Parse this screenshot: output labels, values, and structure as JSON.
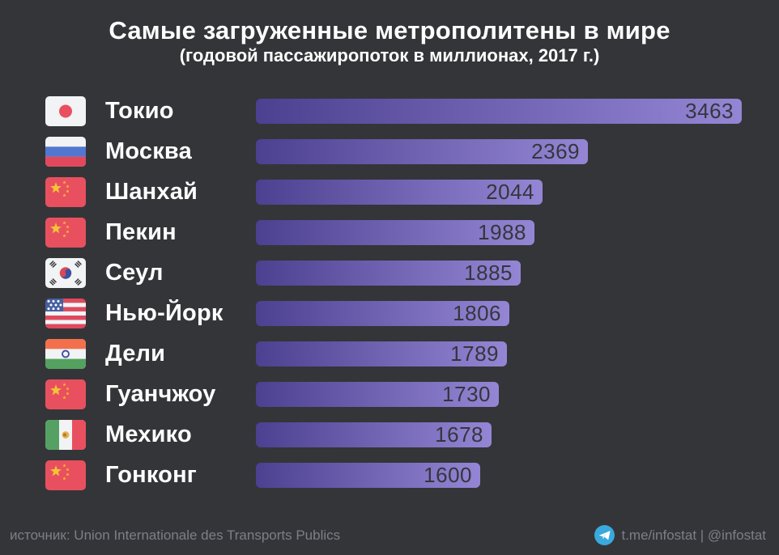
{
  "title": "Самые загруженные метрополитены в мире",
  "subtitle": "(годовой пассажиропоток в миллионах, 2017 г.)",
  "chart_data": {
    "type": "bar",
    "orientation": "horizontal",
    "title": "Самые загруженные метрополитены в мире",
    "subtitle": "(годовой пассажиропоток в миллионах, 2017 г.)",
    "categories": [
      "Токио",
      "Москва",
      "Шанхай",
      "Пекин",
      "Сеул",
      "Нью-Йорк",
      "Дели",
      "Гуанчжоу",
      "Мехико",
      "Гонконг"
    ],
    "values": [
      3463,
      2369,
      2044,
      1988,
      1885,
      1806,
      1789,
      1730,
      1678,
      1600
    ],
    "flags": [
      "japan",
      "russia",
      "china",
      "china",
      "south-korea",
      "usa",
      "india",
      "china",
      "mexico",
      "china"
    ],
    "xlim": [
      0,
      3463
    ],
    "value_labels": "inside-end",
    "grid": false,
    "legend": "none",
    "bar_gradient": [
      "#4c4090",
      "#9486d4"
    ]
  },
  "footer": {
    "source": "источник: Union Internationale des Transports Publics",
    "telegram": "t.me/infostat | @infostat"
  },
  "colors": {
    "background": "#343539",
    "title_text": "#ffffff",
    "bar_start": "#4c4090",
    "bar_end": "#9486d4",
    "value_text": "#35363c",
    "footer_text": "#7d7f86",
    "telegram_blue": "#3aa9dd"
  }
}
